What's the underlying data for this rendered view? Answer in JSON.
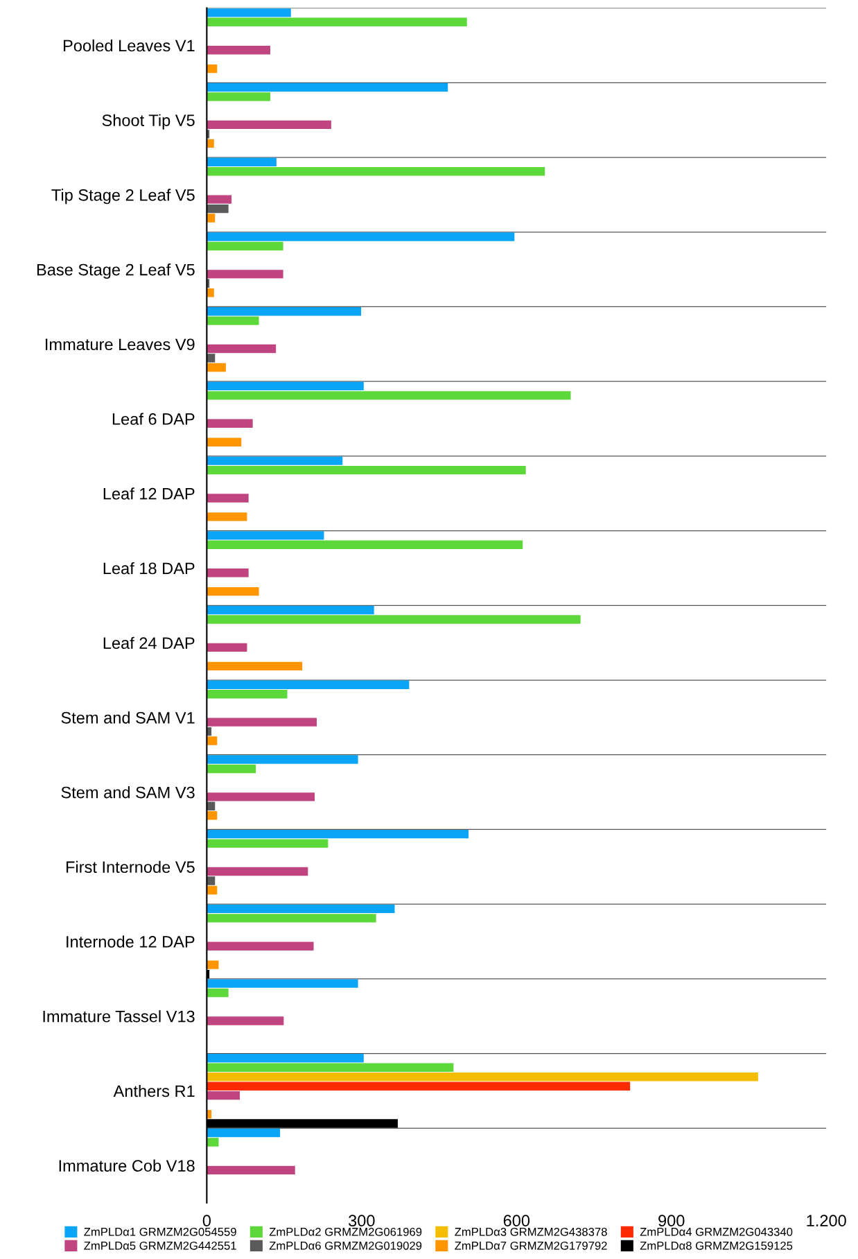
{
  "chart_data": {
    "type": "bar",
    "orientation": "horizontal",
    "categories": [
      "Pooled Leaves V1",
      "Shoot Tip V5",
      "Tip Stage 2 Leaf V5",
      "Base Stage 2 Leaf V5",
      "Immature Leaves V9",
      "Leaf 6 DAP",
      "Leaf 12 DAP",
      "Leaf 18 DAP",
      "Leaf 24 DAP",
      "Stem and SAM V1",
      "Stem and SAM V3",
      "First Internode V5",
      "Internode 12 DAP",
      "Immature Tassel V13",
      "Anthers R1",
      "Immature Cob V18"
    ],
    "series": [
      {
        "name": "ZmPLDα1 GRMZM2G054559",
        "color": "#0ba5f7",
        "values": [
          163,
          467,
          135,
          596,
          299,
          304,
          263,
          227,
          324,
          392,
          293,
          507,
          364,
          293,
          304,
          142
        ]
      },
      {
        "name": "ZmPLDα2 GRMZM2G061969",
        "color": "#5dd83a",
        "values": [
          504,
          123,
          655,
          148,
          101,
          705,
          618,
          612,
          724,
          156,
          95,
          235,
          328,
          42,
          478,
          23
        ]
      },
      {
        "name": "ZmPLDα3 GRMZM2G438378",
        "color": "#f5bd00",
        "values": [
          null,
          null,
          null,
          null,
          null,
          null,
          null,
          null,
          null,
          null,
          null,
          null,
          null,
          null,
          1068,
          null
        ]
      },
      {
        "name": "ZmPLDα4 GRMZM2G043340",
        "color": "#fe2b00",
        "values": [
          null,
          null,
          null,
          null,
          null,
          null,
          null,
          null,
          null,
          null,
          null,
          null,
          null,
          null,
          820,
          null
        ]
      },
      {
        "name": "ZmPLDα5 GRMZM2G442551",
        "color": "#c0447f",
        "values": [
          123,
          241,
          48,
          148,
          134,
          89,
          81,
          81,
          78,
          213,
          209,
          196,
          207,
          149,
          64,
          171
        ]
      },
      {
        "name": "ZmPLDα6 GRMZM2G019029",
        "color": "#5a5a5a",
        "values": [
          null,
          5,
          42,
          5,
          16,
          null,
          null,
          null,
          null,
          9,
          16,
          16,
          null,
          null,
          null,
          null
        ]
      },
      {
        "name": "ZmPLDα7 GRMZM2G179792",
        "color": "#ff9500",
        "values": [
          20,
          14,
          16,
          14,
          37,
          67,
          78,
          101,
          185,
          20,
          20,
          20,
          23,
          null,
          9,
          null
        ]
      },
      {
        "name": "ZmPLDα8 GRMZM2G159125",
        "color": "#000000",
        "values": [
          null,
          null,
          null,
          null,
          null,
          null,
          null,
          null,
          null,
          null,
          null,
          null,
          5,
          null,
          370,
          null
        ]
      }
    ],
    "xlim": [
      0,
      1200
    ],
    "xticks": [
      0,
      300,
      600,
      900,
      {
        "value": 1200,
        "label": "1.200"
      }
    ],
    "grid": "y",
    "legend": "bottom"
  }
}
